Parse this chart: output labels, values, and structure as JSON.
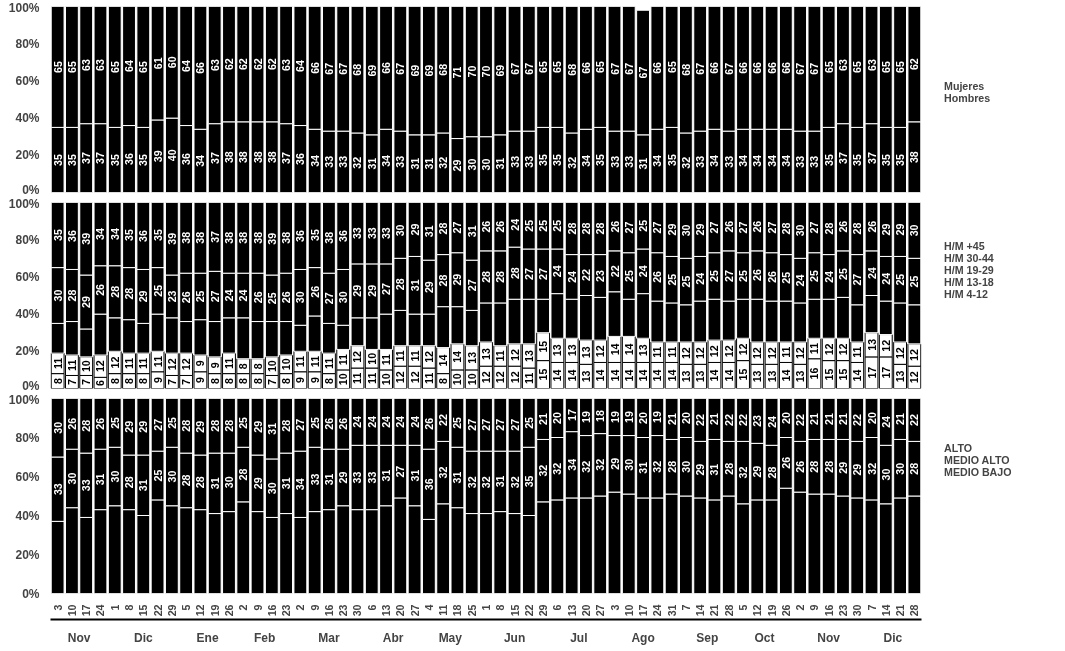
{
  "chart_data": [
    {
      "type": "bar",
      "stacked": true,
      "legend": "right",
      "tick_labels": "y",
      "ylim": [
        0,
        100
      ],
      "yticks": [
        {
          "value": 0,
          "label": "0%"
        },
        {
          "value": 20,
          "label": "20%"
        },
        {
          "value": 40,
          "label": "40%"
        },
        {
          "value": 60,
          "label": "60%"
        },
        {
          "value": 80,
          "label": "80%"
        },
        {
          "value": 100,
          "label": "100%"
        }
      ],
      "categories": [
        "3",
        "10",
        "17",
        "24",
        "1",
        "8",
        "15",
        "22",
        "29",
        "5",
        "12",
        "19",
        "26",
        "2",
        "9",
        "16",
        "23",
        "2",
        "9",
        "16",
        "23",
        "30",
        "6",
        "13",
        "20",
        "27",
        "4",
        "11",
        "18",
        "25",
        "1",
        "8",
        "15",
        "22",
        "29",
        "6",
        "13",
        "20",
        "27",
        "3",
        "10",
        "17",
        "24",
        "31",
        "7",
        "14",
        "21",
        "28",
        "5",
        "12",
        "19",
        "26",
        "2",
        "9",
        "16",
        "23",
        "30",
        "7",
        "14",
        "21",
        "28"
      ],
      "series": [
        {
          "name": "Hombres",
          "color": "#000000",
          "data_labels": true,
          "values": [
            35,
            35,
            37,
            37,
            35,
            36,
            35,
            39,
            40,
            36,
            34,
            37,
            38,
            38,
            38,
            38,
            37,
            36,
            34,
            33,
            33,
            32,
            31,
            34,
            33,
            31,
            31,
            32,
            29,
            30,
            30,
            31,
            33,
            33,
            35,
            35,
            32,
            34,
            35,
            33,
            33,
            31,
            34,
            35,
            32,
            33,
            34,
            33,
            34,
            34,
            34,
            34,
            33,
            33,
            35,
            37,
            35,
            37,
            35,
            35,
            38
          ]
        },
        {
          "name": "Mujeres",
          "color": "#000000",
          "data_labels": true,
          "values": [
            65,
            65,
            63,
            63,
            65,
            64,
            65,
            61,
            60,
            64,
            66,
            63,
            62,
            62,
            62,
            62,
            63,
            64,
            66,
            67,
            67,
            68,
            69,
            66,
            67,
            69,
            69,
            68,
            71,
            70,
            70,
            69,
            67,
            67,
            65,
            65,
            68,
            66,
            65,
            67,
            67,
            67,
            66,
            65,
            68,
            67,
            66,
            67,
            66,
            66,
            66,
            66,
            67,
            67,
            65,
            63,
            65,
            63,
            65,
            65,
            62
          ]
        }
      ]
    },
    {
      "type": "bar",
      "stacked": true,
      "legend": "right",
      "tick_labels": "y",
      "ylim": [
        0,
        100
      ],
      "yticks": [
        {
          "value": 0,
          "label": "0%"
        },
        {
          "value": 20,
          "label": "20%"
        },
        {
          "value": 40,
          "label": "40%"
        },
        {
          "value": 60,
          "label": "60%"
        },
        {
          "value": 80,
          "label": "80%"
        },
        {
          "value": 100,
          "label": "100%"
        }
      ],
      "categories": [
        "3",
        "10",
        "17",
        "24",
        "1",
        "8",
        "15",
        "22",
        "29",
        "5",
        "12",
        "19",
        "26",
        "2",
        "9",
        "16",
        "23",
        "2",
        "9",
        "16",
        "23",
        "30",
        "6",
        "13",
        "20",
        "27",
        "4",
        "11",
        "18",
        "25",
        "1",
        "8",
        "15",
        "22",
        "29",
        "6",
        "13",
        "20",
        "27",
        "3",
        "10",
        "17",
        "24",
        "31",
        "7",
        "14",
        "21",
        "28",
        "5",
        "12",
        "19",
        "26",
        "2",
        "9",
        "16",
        "23",
        "30",
        "7",
        "14",
        "21",
        "28"
      ],
      "series": [
        {
          "name": "H/M 4-12",
          "color": "#ffffff",
          "data_labels": true,
          "values": [
            8,
            7,
            7,
            6,
            8,
            8,
            8,
            9,
            7,
            7,
            9,
            8,
            8,
            8,
            8,
            7,
            8,
            9,
            9,
            8,
            10,
            11,
            11,
            10,
            12,
            12,
            11,
            8,
            10,
            10,
            12,
            12,
            12,
            11,
            15,
            14,
            14,
            13,
            14,
            14,
            14,
            14,
            14,
            14,
            13,
            13,
            14,
            14,
            15,
            13,
            13,
            14,
            13,
            16,
            15,
            15,
            14,
            17,
            17,
            13,
            12
          ]
        },
        {
          "name": "H/M 13-18",
          "color": "#ffffff",
          "data_labels": true,
          "values": [
            11,
            11,
            10,
            12,
            12,
            11,
            11,
            11,
            12,
            12,
            9,
            9,
            11,
            8,
            8,
            10,
            10,
            11,
            11,
            11,
            11,
            12,
            10,
            11,
            11,
            11,
            12,
            14,
            14,
            13,
            13,
            11,
            12,
            13,
            15,
            13,
            13,
            13,
            12,
            14,
            14,
            13,
            11,
            11,
            12,
            12,
            12,
            12,
            12,
            12,
            12,
            11,
            12,
            11,
            12,
            12,
            11,
            13,
            12,
            12,
            12
          ]
        },
        {
          "name": "H/M 19-29",
          "color": "#000000",
          "values": [
            16,
            18,
            15,
            22,
            18,
            18,
            16,
            20,
            19,
            17,
            19,
            19,
            19,
            22,
            20,
            19,
            18,
            14,
            19,
            16,
            13,
            15,
            17,
            19,
            19,
            17,
            17,
            22,
            20,
            19,
            21,
            23,
            24,
            24,
            18,
            24,
            21,
            24,
            23,
            24,
            20,
            24,
            22,
            21,
            20,
            22,
            22,
            21,
            21,
            23,
            22,
            22,
            21,
            21,
            21,
            22,
            20,
            20,
            18,
            21,
            21
          ]
        },
        {
          "name": "H/M 30-44",
          "color": "#000000",
          "data_labels": true,
          "values": [
            30,
            28,
            29,
            26,
            28,
            28,
            29,
            25,
            23,
            26,
            25,
            27,
            24,
            24,
            26,
            25,
            26,
            30,
            26,
            27,
            30,
            29,
            29,
            27,
            28,
            31,
            29,
            28,
            29,
            27,
            28,
            28,
            28,
            27,
            27,
            24,
            24,
            22,
            23,
            22,
            25,
            24,
            26,
            25,
            25,
            24,
            25,
            27,
            25,
            26,
            26,
            25,
            24,
            25,
            24,
            25,
            27,
            24,
            24,
            25,
            25
          ]
        },
        {
          "name": "H/M +45",
          "color": "#000000",
          "data_labels": true,
          "values": [
            35,
            36,
            39,
            34,
            34,
            35,
            36,
            35,
            39,
            38,
            38,
            37,
            38,
            38,
            38,
            39,
            38,
            36,
            35,
            38,
            36,
            33,
            33,
            33,
            30,
            29,
            31,
            28,
            27,
            31,
            26,
            26,
            24,
            25,
            25,
            25,
            28,
            28,
            28,
            26,
            27,
            25,
            27,
            29,
            30,
            29,
            27,
            26,
            27,
            26,
            27,
            28,
            30,
            27,
            28,
            26,
            28,
            26,
            29,
            29,
            30
          ]
        }
      ]
    },
    {
      "type": "bar",
      "stacked": true,
      "legend": "right",
      "ylim": [
        0,
        100
      ],
      "yticks": [
        {
          "value": 0,
          "label": "0%"
        },
        {
          "value": 20,
          "label": "20%"
        },
        {
          "value": 40,
          "label": "40%"
        },
        {
          "value": 60,
          "label": "60%"
        },
        {
          "value": 80,
          "label": "80%"
        },
        {
          "value": 100,
          "label": "100%"
        }
      ],
      "categories": [
        "3",
        "10",
        "17",
        "24",
        "1",
        "8",
        "15",
        "22",
        "29",
        "5",
        "12",
        "19",
        "26",
        "2",
        "9",
        "16",
        "23",
        "2",
        "9",
        "16",
        "23",
        "30",
        "6",
        "13",
        "20",
        "27",
        "4",
        "11",
        "18",
        "25",
        "1",
        "8",
        "15",
        "22",
        "29",
        "6",
        "13",
        "20",
        "27",
        "3",
        "10",
        "17",
        "24",
        "31",
        "7",
        "14",
        "21",
        "28",
        "5",
        "12",
        "19",
        "26",
        "2",
        "9",
        "16",
        "23",
        "30",
        "7",
        "14",
        "21",
        "28"
      ],
      "annotations": [
        "Nov",
        "Dic",
        "Ene",
        "Feb",
        "Mar",
        "Abr",
        "May",
        "Jun",
        "Jul",
        "Ago",
        "Sep",
        "Oct",
        "Nov",
        "Dic"
      ],
      "series": [
        {
          "name": "MEDIO BAJO",
          "color": "#000000",
          "values": [
            37,
            44,
            39,
            43,
            45,
            43,
            40,
            48,
            45,
            44,
            43,
            41,
            42,
            47,
            42,
            39,
            41,
            39,
            42,
            43,
            45,
            43,
            43,
            45,
            49,
            45,
            38,
            46,
            44,
            41,
            41,
            42,
            41,
            40,
            47,
            48,
            49,
            49,
            50,
            52,
            51,
            49,
            49,
            51,
            50,
            49,
            48,
            50,
            46,
            48,
            48,
            54,
            52,
            51,
            51,
            50,
            49,
            48,
            46,
            49,
            50
          ]
        },
        {
          "name": "MEDIO ALTO",
          "color": "#000000",
          "data_labels": true,
          "values": [
            33,
            30,
            33,
            31,
            30,
            28,
            31,
            25,
            30,
            28,
            28,
            31,
            30,
            28,
            29,
            30,
            31,
            34,
            33,
            31,
            29,
            33,
            33,
            31,
            27,
            31,
            36,
            32,
            31,
            32,
            32,
            31,
            32,
            35,
            32,
            32,
            34,
            32,
            32,
            29,
            30,
            31,
            32,
            28,
            30,
            29,
            31,
            28,
            32,
            29,
            28,
            26,
            26,
            28,
            28,
            29,
            29,
            32,
            30,
            30,
            28
          ]
        },
        {
          "name": "ALTO",
          "color": "#000000",
          "data_labels": true,
          "values": [
            30,
            26,
            28,
            26,
            25,
            29,
            29,
            27,
            25,
            28,
            29,
            28,
            28,
            25,
            29,
            31,
            28,
            27,
            25,
            26,
            26,
            24,
            24,
            24,
            24,
            24,
            26,
            22,
            25,
            27,
            27,
            27,
            27,
            25,
            21,
            20,
            17,
            19,
            18,
            19,
            19,
            20,
            19,
            21,
            20,
            22,
            21,
            22,
            22,
            23,
            24,
            20,
            22,
            21,
            21,
            21,
            22,
            20,
            24,
            21,
            22
          ]
        }
      ]
    }
  ]
}
